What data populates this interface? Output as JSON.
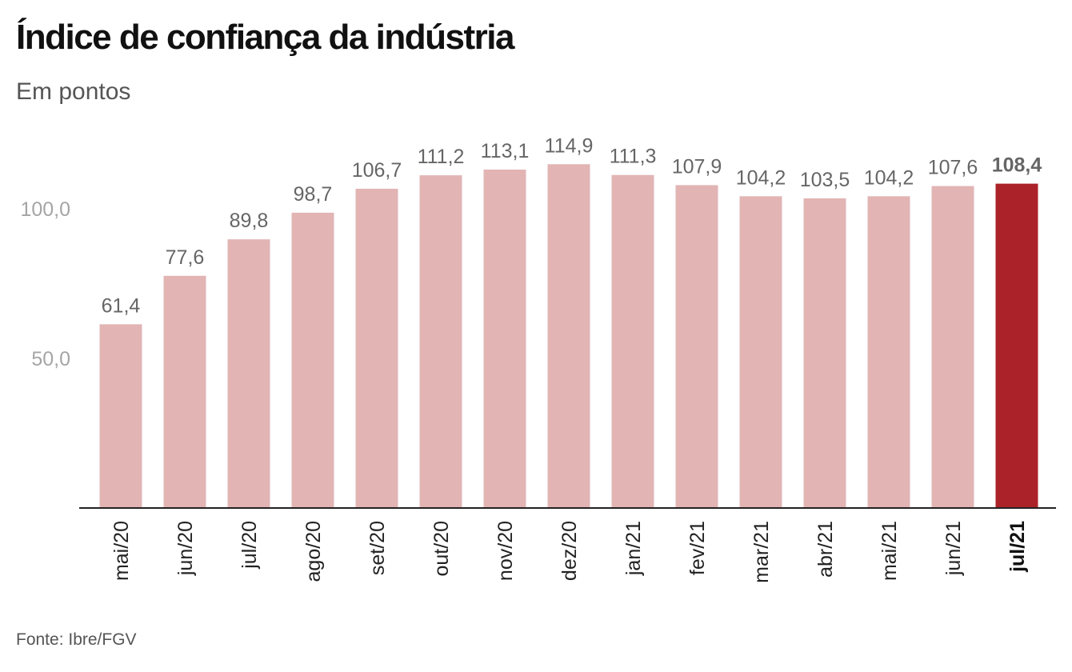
{
  "chart_data": {
    "type": "bar",
    "title": "Índice de confiança da indústria",
    "subtitle": "Em pontos",
    "source": "Fonte: Ibre/FGV",
    "categories": [
      "mai/20",
      "jun/20",
      "jul/20",
      "ago/20",
      "set/20",
      "out/20",
      "nov/20",
      "dez/20",
      "jan/21",
      "fev/21",
      "mar/21",
      "abr/21",
      "mai/21",
      "jun/21",
      "jul/21"
    ],
    "values": [
      61.4,
      77.6,
      89.8,
      98.7,
      106.7,
      111.2,
      113.1,
      114.9,
      111.3,
      107.9,
      104.2,
      103.5,
      104.2,
      107.6,
      108.4
    ],
    "value_labels": [
      "61,4",
      "77,6",
      "89,8",
      "98,7",
      "106,7",
      "111,2",
      "113,1",
      "114,9",
      "111,3",
      "107,9",
      "104,2",
      "103,5",
      "104,2",
      "107,6",
      "108,4"
    ],
    "highlight_index": 14,
    "y_ticks": [
      50,
      100
    ],
    "y_tick_labels": [
      "50,0",
      "100,0"
    ],
    "ylim": [
      0,
      125
    ],
    "grid": false,
    "colors": {
      "bar": "#e2b4b4",
      "highlight": "#ab2328",
      "axis": "#222222"
    }
  }
}
